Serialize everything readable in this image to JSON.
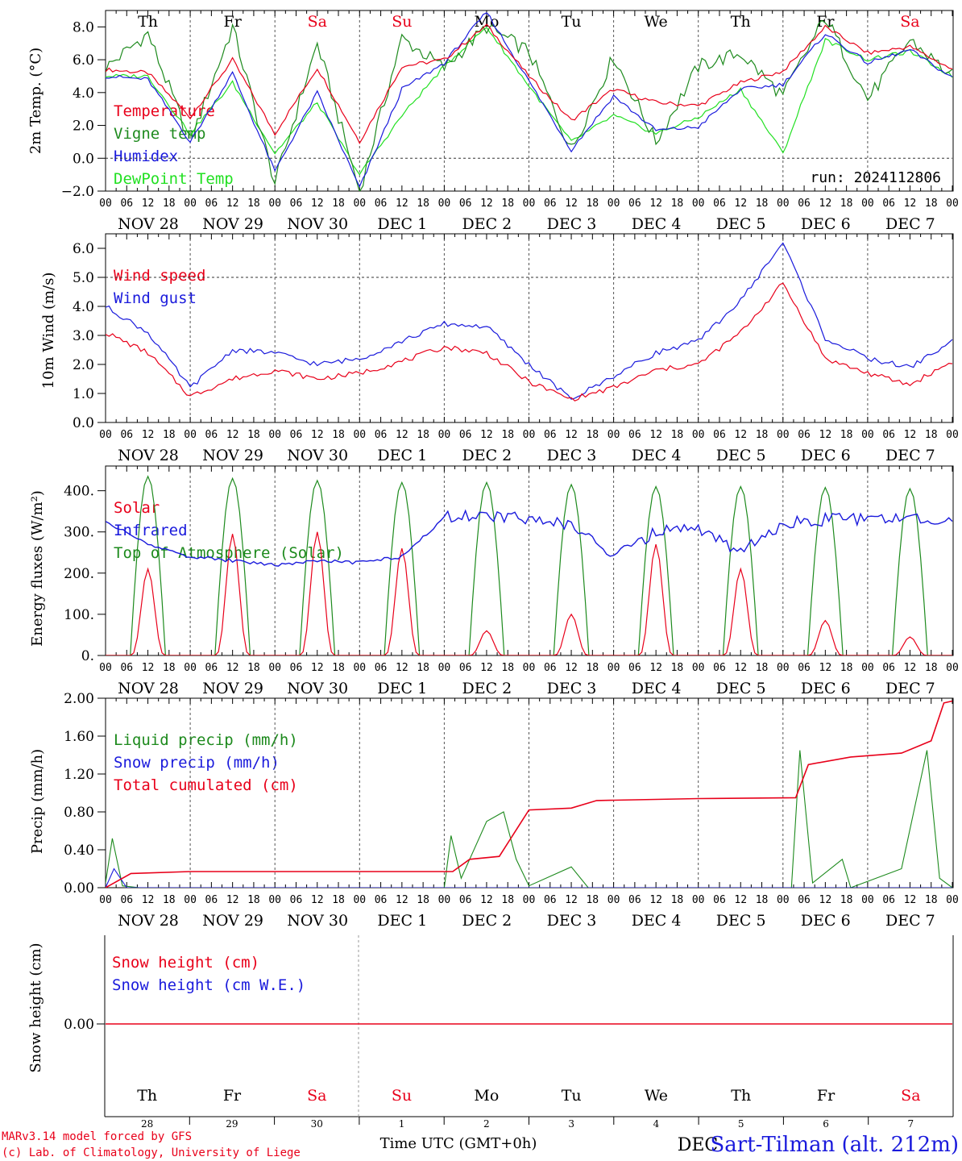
{
  "days": [
    {
      "abbr": "Th",
      "weekend": false,
      "month": "NOV",
      "day": "28"
    },
    {
      "abbr": "Fr",
      "weekend": false,
      "month": "NOV",
      "day": "29"
    },
    {
      "abbr": "Sa",
      "weekend": true,
      "month": "NOV",
      "day": "30"
    },
    {
      "abbr": "Su",
      "weekend": true,
      "month": "DEC",
      "day": "1"
    },
    {
      "abbr": "Mo",
      "weekend": false,
      "month": "DEC",
      "day": "2"
    },
    {
      "abbr": "Tu",
      "weekend": false,
      "month": "DEC",
      "day": "3"
    },
    {
      "abbr": "We",
      "weekend": false,
      "month": "DEC",
      "day": "4"
    },
    {
      "abbr": "Th",
      "weekend": false,
      "month": "DEC",
      "day": "5"
    },
    {
      "abbr": "Fr",
      "weekend": false,
      "month": "DEC",
      "day": "6"
    },
    {
      "abbr": "Sa",
      "weekend": true,
      "month": "DEC",
      "day": "7"
    }
  ],
  "hour_ticks": [
    "00",
    "06",
    "12",
    "18"
  ],
  "colors": {
    "red": "#e8001a",
    "green": "#1d8a1d",
    "blue": "#1a1adc",
    "lightgreen": "#22e022",
    "black": "#000000"
  },
  "footer": {
    "credit_line1": "MARv3.14 model forced by GFS",
    "credit_line2": "(c) Lab. of Climatology, University of Liege",
    "xaxis_title": "Time UTC (GMT+0h)",
    "x_unit_label": "DEC",
    "station": "Sart-Tilman (alt. 212m)"
  },
  "chart_data": [
    {
      "type": "line",
      "ylabel": "2m Temp. (°C)",
      "ylim": [
        -2,
        9
      ],
      "yticks": [
        "8.0",
        "6.0",
        "4.0",
        "2.0",
        "0.0",
        "−2.0"
      ],
      "ytick_values": [
        8,
        6,
        4,
        2,
        0,
        -2
      ],
      "annotation": "run: 2024112806",
      "x_days": [
        0,
        0.5,
        1,
        1.5,
        2,
        2.5,
        3,
        3.5,
        4,
        4.5,
        5,
        5.5,
        6,
        6.5,
        7,
        7.5,
        8,
        8.5,
        9,
        9.5,
        10
      ],
      "series": [
        {
          "name": "Temperature",
          "color": "red",
          "values": [
            5.4,
            5.2,
            2.5,
            6.0,
            1.5,
            5.5,
            1.0,
            5.6,
            6.0,
            8.1,
            5.0,
            2.3,
            4.2,
            3.4,
            3.2,
            4.6,
            5.3,
            8.0,
            6.4,
            6.8,
            5.4
          ]
        },
        {
          "name": "Vigne temp",
          "color": "green",
          "values": [
            5.5,
            7.6,
            1.0,
            8.0,
            -1.5,
            7.0,
            -2.0,
            7.3,
            5.5,
            8.0,
            6.5,
            0.5,
            6.2,
            1.0,
            5.6,
            6.4,
            3.8,
            8.6,
            3.6,
            7.2,
            5.0
          ]
        },
        {
          "name": "Humidex",
          "color": "blue",
          "values": [
            5.0,
            4.8,
            1.0,
            5.2,
            -0.8,
            4.0,
            -1.8,
            4.2,
            5.8,
            8.9,
            4.7,
            0.5,
            3.8,
            1.7,
            1.9,
            4.2,
            4.5,
            7.6,
            5.8,
            6.6,
            4.9
          ]
        },
        {
          "name": "DewPoint Temp",
          "color": "lightgreen",
          "values": [
            5.0,
            5.0,
            1.5,
            4.6,
            0.3,
            3.4,
            -1.0,
            2.6,
            5.6,
            8.0,
            4.4,
            1.0,
            2.6,
            1.5,
            2.5,
            4.2,
            0.3,
            7.2,
            6.0,
            6.5,
            5.0
          ]
        }
      ]
    },
    {
      "type": "line",
      "ylabel": "10m Wind (m/s)",
      "ylim": [
        0,
        6.5
      ],
      "yticks": [
        "6.0",
        "5.0",
        "4.0",
        "3.0",
        "2.0",
        "1.0",
        "0.0"
      ],
      "ytick_values": [
        6,
        5,
        4,
        3,
        2,
        1,
        0
      ],
      "x_days": [
        0,
        0.5,
        1,
        1.5,
        2,
        2.5,
        3,
        3.5,
        4,
        4.5,
        5,
        5.5,
        6,
        6.5,
        7,
        7.5,
        8,
        8.5,
        9,
        9.5,
        10
      ],
      "series": [
        {
          "name": "Wind speed",
          "color": "red",
          "values": [
            3.1,
            2.4,
            0.9,
            1.5,
            1.8,
            1.5,
            1.7,
            2.1,
            2.6,
            2.4,
            1.4,
            0.8,
            1.2,
            1.8,
            2.0,
            3.1,
            4.8,
            2.2,
            1.7,
            1.3,
            2.1
          ]
        },
        {
          "name": "Wind gust",
          "color": "blue",
          "values": [
            4.0,
            3.1,
            1.2,
            2.5,
            2.4,
            2.0,
            2.2,
            2.8,
            3.4,
            3.3,
            2.0,
            0.8,
            1.6,
            2.4,
            2.8,
            4.2,
            6.2,
            2.9,
            2.2,
            1.9,
            2.8
          ]
        }
      ]
    },
    {
      "type": "line",
      "ylabel": "Energy fluxes (W/m²)",
      "ylim": [
        0,
        460
      ],
      "yticks": [
        "400.",
        "300.",
        "200.",
        "100.",
        "0."
      ],
      "ytick_values": [
        400,
        300,
        200,
        100,
        0
      ],
      "solar_noon_hour": 12,
      "series": [
        {
          "name": "Solar",
          "color": "red",
          "daily_peak": [
            210,
            295,
            300,
            260,
            60,
            100,
            270,
            210,
            85,
            45
          ]
        },
        {
          "name": "Infrared",
          "color": "blue",
          "x_days": [
            0,
            0.5,
            1,
            1.5,
            2,
            2.5,
            3,
            3.5,
            4,
            4.5,
            5,
            5.5,
            6,
            6.5,
            7,
            7.5,
            8,
            8.5,
            9,
            9.5,
            10
          ],
          "values": [
            325,
            270,
            240,
            230,
            220,
            230,
            225,
            240,
            335,
            340,
            330,
            320,
            240,
            300,
            310,
            250,
            320,
            330,
            330,
            330,
            328
          ]
        },
        {
          "name": "Top of Atmosphere (Solar)",
          "color": "green",
          "daily_peak": [
            435,
            430,
            425,
            420,
            420,
            415,
            410,
            410,
            408,
            405
          ]
        }
      ]
    },
    {
      "type": "line",
      "ylabel": "Precip (mm/h)",
      "ylim": [
        0,
        2.0
      ],
      "yticks": [
        "2.00",
        "1.60",
        "1.20",
        "0.80",
        "0.40",
        "0.00"
      ],
      "ytick_values": [
        2.0,
        1.6,
        1.2,
        0.8,
        0.4,
        0.0
      ],
      "series": [
        {
          "name": "Liquid precip (mm/h)",
          "color": "green",
          "points": [
            [
              0,
              0.05
            ],
            [
              0.08,
              0.52
            ],
            [
              0.2,
              0.02
            ],
            [
              0.4,
              0.0
            ],
            [
              4.0,
              0.0
            ],
            [
              4.08,
              0.55
            ],
            [
              4.2,
              0.1
            ],
            [
              4.5,
              0.7
            ],
            [
              4.7,
              0.8
            ],
            [
              4.85,
              0.3
            ],
            [
              5.0,
              0.02
            ],
            [
              5.5,
              0.22
            ],
            [
              5.7,
              0.0
            ],
            [
              8.1,
              0.0
            ],
            [
              8.2,
              1.45
            ],
            [
              8.35,
              0.05
            ],
            [
              8.7,
              0.3
            ],
            [
              8.8,
              0.0
            ],
            [
              9.4,
              0.2
            ],
            [
              9.7,
              1.45
            ],
            [
              9.85,
              0.1
            ],
            [
              10,
              0.0
            ]
          ]
        },
        {
          "name": "Snow precip (mm/h)",
          "color": "blue",
          "points": [
            [
              0,
              0.0
            ],
            [
              0.1,
              0.2
            ],
            [
              0.25,
              0.0
            ],
            [
              10,
              0.0
            ]
          ]
        },
        {
          "name": "Total cumulated (cm)",
          "color": "red",
          "points": [
            [
              0,
              0.0
            ],
            [
              0.3,
              0.15
            ],
            [
              1.0,
              0.17
            ],
            [
              4.1,
              0.17
            ],
            [
              4.3,
              0.3
            ],
            [
              4.65,
              0.33
            ],
            [
              5.0,
              0.82
            ],
            [
              5.5,
              0.84
            ],
            [
              5.8,
              0.92
            ],
            [
              7.0,
              0.94
            ],
            [
              8.15,
              0.95
            ],
            [
              8.3,
              1.3
            ],
            [
              8.8,
              1.38
            ],
            [
              9.4,
              1.42
            ],
            [
              9.75,
              1.55
            ],
            [
              9.9,
              1.95
            ],
            [
              10,
              1.97
            ]
          ]
        }
      ]
    },
    {
      "type": "line",
      "ylabel": "Snow height (cm)",
      "ytick": "0.00",
      "series": [
        {
          "name": "Snow height (cm)",
          "color": "red",
          "values": [
            0,
            0
          ]
        },
        {
          "name": "Snow height (cm W.E.)",
          "color": "blue",
          "values": [
            0,
            0
          ]
        }
      ]
    }
  ]
}
